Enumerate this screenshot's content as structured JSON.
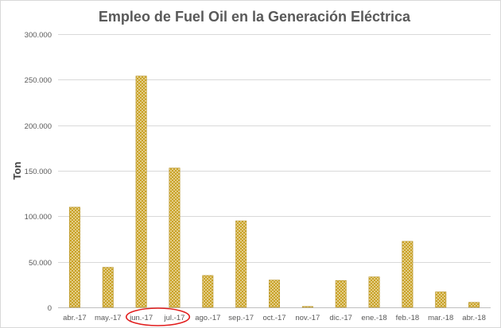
{
  "chart_data": {
    "type": "bar",
    "title": "Empleo de Fuel Oil en la Generación Eléctrica",
    "xlabel": "",
    "ylabel": "Ton",
    "categories": [
      "abr.-17",
      "may.-17",
      "jun.-17",
      "jul.-17",
      "ago.-17",
      "sep.-17",
      "oct.-17",
      "nov.-17",
      "dic.-17",
      "ene.-18",
      "feb.-18",
      "mar.-18",
      "abr.-18"
    ],
    "values": [
      110000,
      44000,
      254000,
      153000,
      35000,
      95000,
      30000,
      1000,
      29500,
      33500,
      72500,
      17000,
      5500
    ],
    "ylim": [
      0,
      300000
    ],
    "yticks": [
      0,
      50000,
      100000,
      150000,
      200000,
      250000,
      300000
    ],
    "ytick_labels": [
      "0",
      "50.000",
      "100.000",
      "150.000",
      "200.000",
      "250.000",
      "300.000"
    ],
    "grid": true,
    "legend": "none",
    "bar_color": "#c9a227",
    "bar_pattern_color": "#f7eccb",
    "highlighted_categories": [
      "jun.-17",
      "jul.-17"
    ],
    "highlight_color": "#e21d1d"
  }
}
